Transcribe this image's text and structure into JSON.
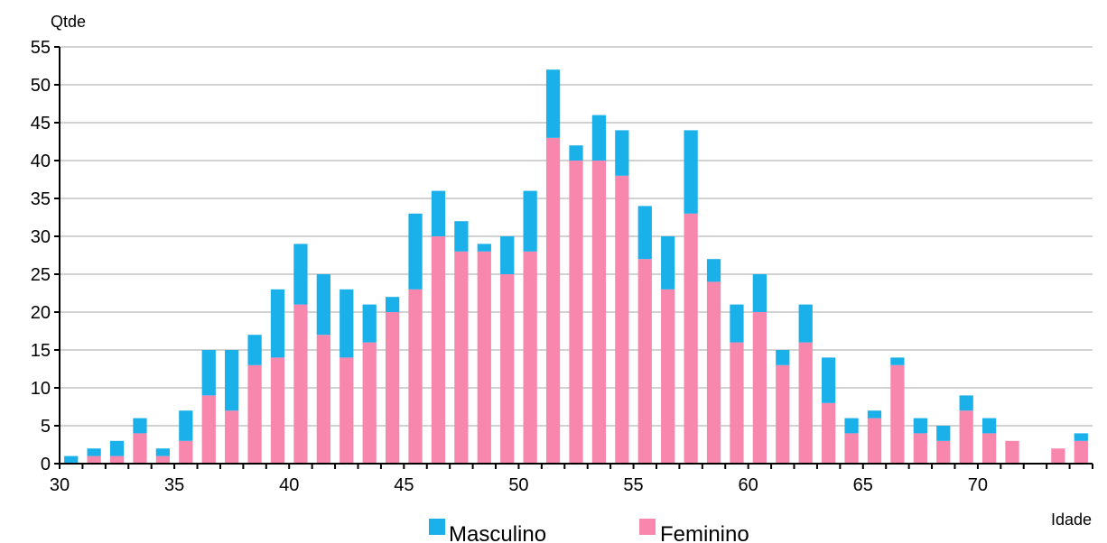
{
  "chart_data": {
    "type": "bar",
    "stacked": true,
    "ylabel": "Qtde",
    "xlabel": "Idade",
    "ylim": [
      0,
      55
    ],
    "xlim": [
      30,
      75
    ],
    "yticks": [
      0,
      5,
      10,
      15,
      20,
      25,
      30,
      35,
      40,
      45,
      50,
      55
    ],
    "xticks": [
      30,
      35,
      40,
      45,
      50,
      55,
      60,
      65,
      70
    ],
    "grid": "horizontal",
    "legend_position": "bottom",
    "x": [
      30,
      31,
      32,
      33,
      34,
      35,
      36,
      37,
      38,
      39,
      40,
      41,
      42,
      43,
      44,
      45,
      46,
      47,
      48,
      49,
      50,
      51,
      52,
      53,
      54,
      55,
      56,
      57,
      58,
      59,
      60,
      61,
      62,
      63,
      64,
      65,
      66,
      67,
      68,
      69,
      70,
      71,
      72,
      73,
      74
    ],
    "series": [
      {
        "name": "Feminino",
        "color": "#f887ad",
        "values": [
          0,
          1,
          1,
          4,
          1,
          3,
          9,
          7,
          13,
          14,
          21,
          17,
          14,
          16,
          20,
          23,
          30,
          28,
          28,
          25,
          28,
          43,
          40,
          40,
          38,
          27,
          23,
          33,
          24,
          16,
          20,
          13,
          16,
          8,
          4,
          6,
          13,
          4,
          3,
          7,
          4,
          3,
          0,
          2,
          3
        ]
      },
      {
        "name": "Masculino",
        "color": "#1ab0ea",
        "values": [
          1,
          1,
          2,
          2,
          1,
          4,
          6,
          8,
          4,
          9,
          8,
          8,
          9,
          5,
          2,
          10,
          6,
          4,
          1,
          5,
          8,
          9,
          2,
          6,
          6,
          7,
          7,
          11,
          3,
          5,
          5,
          2,
          5,
          6,
          2,
          1,
          1,
          2,
          2,
          2,
          2,
          0,
          0,
          0,
          1
        ]
      }
    ],
    "legend": [
      "Masculino",
      "Feminino"
    ]
  }
}
